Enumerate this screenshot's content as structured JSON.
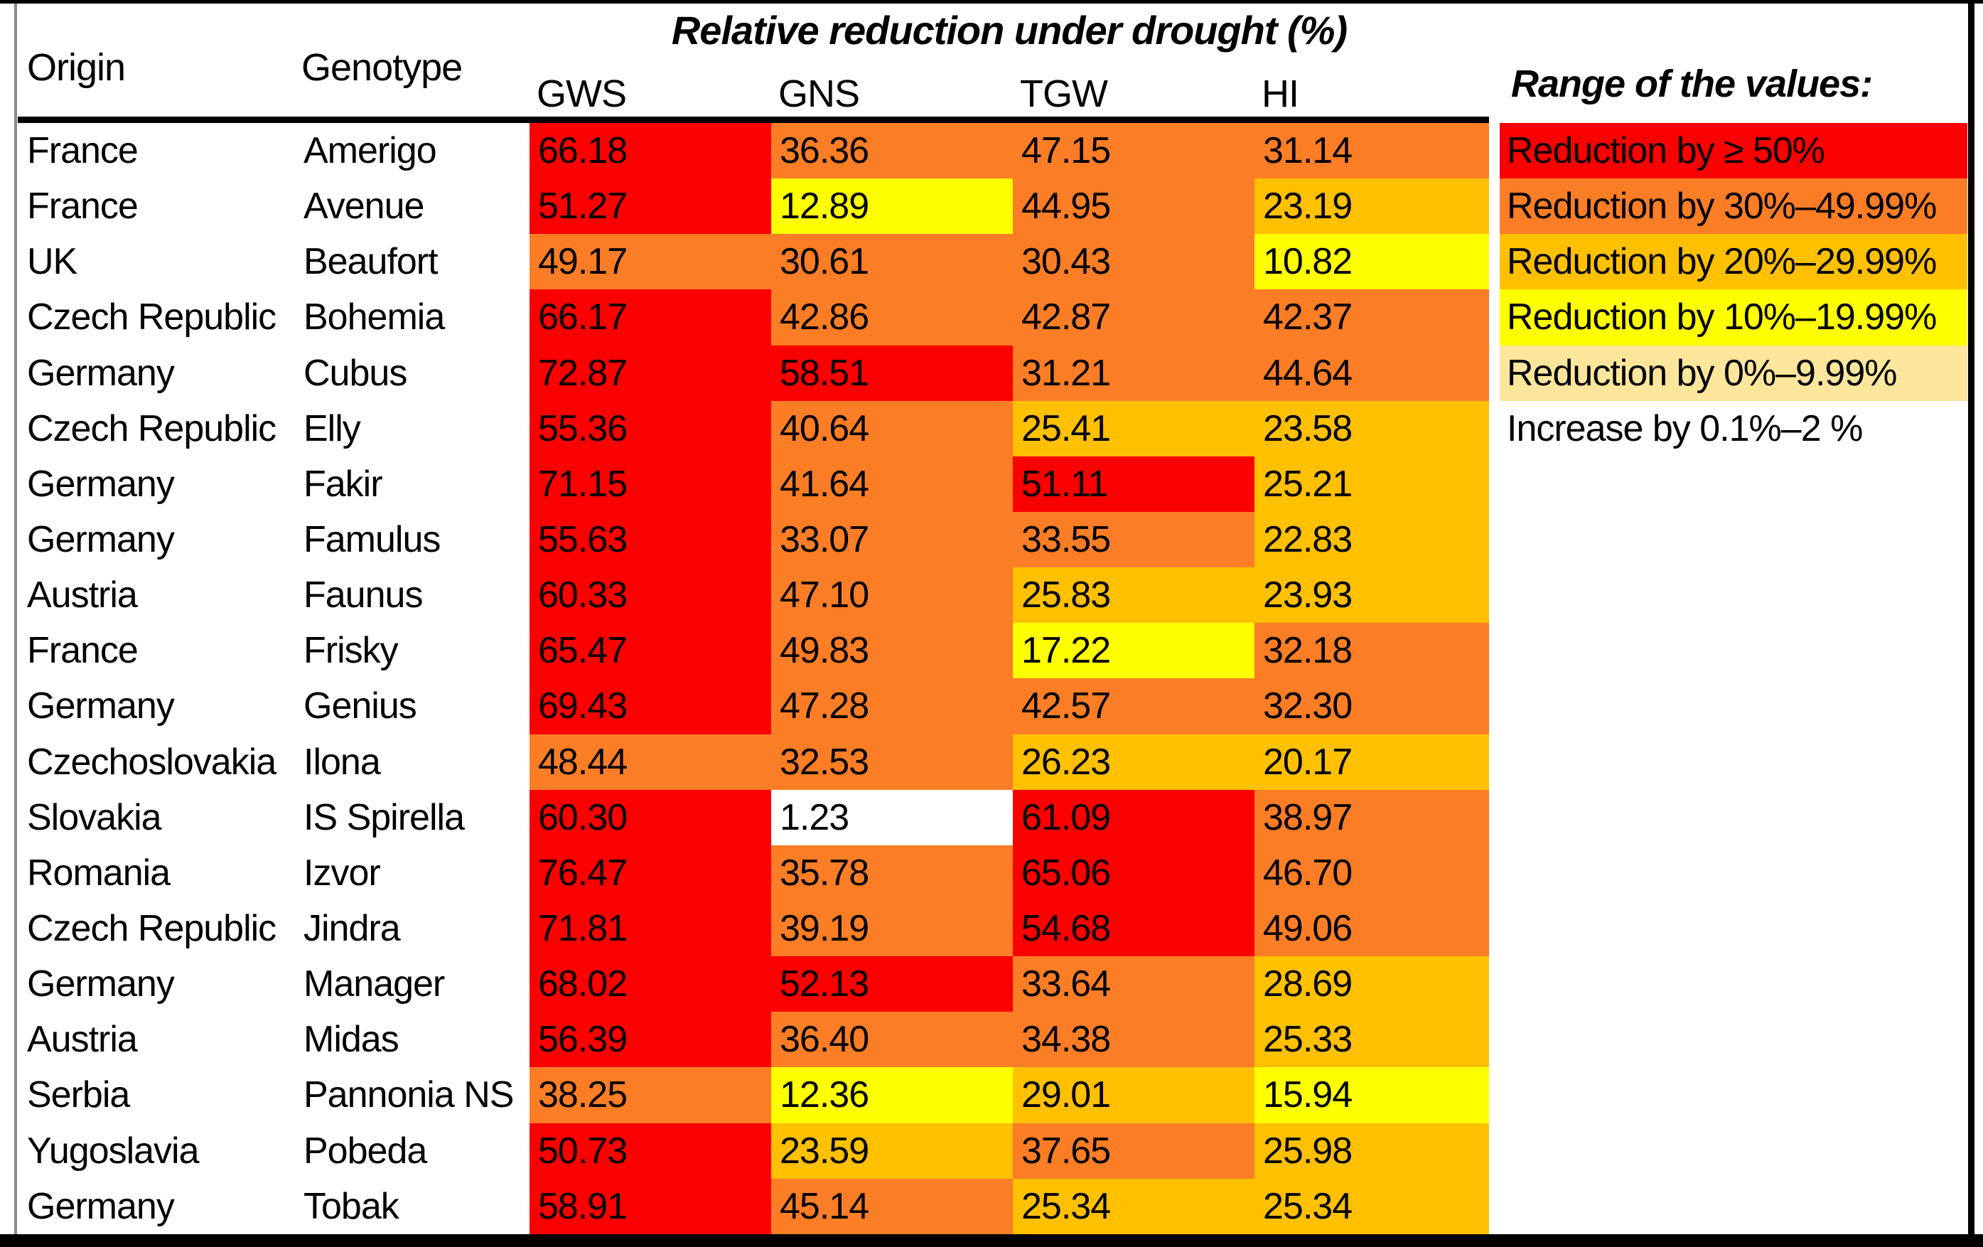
{
  "title": "Relative reduction under drought (%)",
  "headers": {
    "origin": "Origin",
    "genotype": "Genotype"
  },
  "metrics": [
    "GWS",
    "GNS",
    "TGW",
    "HI"
  ],
  "palette": {
    "ge50": "#FB0000",
    "r30": "#FB7D25",
    "r20": "#FFC000",
    "r10": "#FFFF00",
    "r0": "#FCE69C",
    "inc": "#FFFFFF"
  },
  "legend": {
    "title": "Range of the values:",
    "items": [
      {
        "level": "ge50",
        "label": "Reduction by ≥ 50%"
      },
      {
        "level": "r30",
        "label": "Reduction by 30%–49.99%"
      },
      {
        "level": "r20",
        "label": "Reduction by 20%–29.99%"
      },
      {
        "level": "r10",
        "label": "Reduction by 10%–19.99%"
      },
      {
        "level": "r0",
        "label": "Reduction by 0%–9.99%"
      },
      {
        "level": "inc",
        "label": "Increase by 0.1%–2 %"
      }
    ]
  },
  "chart_data": {
    "type": "heatmap",
    "title": "Relative reduction under drought (%)",
    "row_header_columns": [
      "Origin",
      "Genotype"
    ],
    "columns": [
      "GWS",
      "GNS",
      "TGW",
      "HI"
    ],
    "rows": [
      {
        "origin": "France",
        "genotype": "Amerigo",
        "values": [
          "66.18",
          "36.36",
          "47.15",
          "31.14"
        ],
        "levels": [
          "ge50",
          "r30",
          "r30",
          "r30"
        ]
      },
      {
        "origin": "France",
        "genotype": "Avenue",
        "values": [
          "51.27",
          "12.89",
          "44.95",
          "23.19"
        ],
        "levels": [
          "ge50",
          "r10",
          "r30",
          "r20"
        ]
      },
      {
        "origin": "UK",
        "genotype": "Beaufort",
        "values": [
          "49.17",
          "30.61",
          "30.43",
          "10.82"
        ],
        "levels": [
          "r30",
          "r30",
          "r30",
          "r10"
        ]
      },
      {
        "origin": "Czech Republic",
        "genotype": "Bohemia",
        "values": [
          "66.17",
          "42.86",
          "42.87",
          "42.37"
        ],
        "levels": [
          "ge50",
          "r30",
          "r30",
          "r30"
        ]
      },
      {
        "origin": "Germany",
        "genotype": "Cubus",
        "values": [
          "72.87",
          "58.51",
          "31.21",
          "44.64"
        ],
        "levels": [
          "ge50",
          "ge50",
          "r30",
          "r30"
        ]
      },
      {
        "origin": "Czech Republic",
        "genotype": "Elly",
        "values": [
          "55.36",
          "40.64",
          "25.41",
          "23.58"
        ],
        "levels": [
          "ge50",
          "r30",
          "r20",
          "r20"
        ]
      },
      {
        "origin": "Germany",
        "genotype": "Fakir",
        "values": [
          "71.15",
          "41.64",
          "51.11",
          "25.21"
        ],
        "levels": [
          "ge50",
          "r30",
          "ge50",
          "r20"
        ]
      },
      {
        "origin": "Germany",
        "genotype": "Famulus",
        "values": [
          "55.63",
          "33.07",
          "33.55",
          "22.83"
        ],
        "levels": [
          "ge50",
          "r30",
          "r30",
          "r20"
        ]
      },
      {
        "origin": "Austria",
        "genotype": "Faunus",
        "values": [
          "60.33",
          "47.10",
          "25.83",
          "23.93"
        ],
        "levels": [
          "ge50",
          "r30",
          "r20",
          "r20"
        ]
      },
      {
        "origin": "France",
        "genotype": "Frisky",
        "values": [
          "65.47",
          "49.83",
          "17.22",
          "32.18"
        ],
        "levels": [
          "ge50",
          "r30",
          "r10",
          "r30"
        ]
      },
      {
        "origin": "Germany",
        "genotype": "Genius",
        "values": [
          "69.43",
          "47.28",
          "42.57",
          "32.30"
        ],
        "levels": [
          "ge50",
          "r30",
          "r30",
          "r30"
        ]
      },
      {
        "origin": "Czechoslovakia",
        "genotype": "Ilona",
        "values": [
          "48.44",
          "32.53",
          "26.23",
          "20.17"
        ],
        "levels": [
          "r30",
          "r30",
          "r20",
          "r20"
        ]
      },
      {
        "origin": "Slovakia",
        "genotype": "IS Spirella",
        "values": [
          "60.30",
          "1.23",
          "61.09",
          "38.97"
        ],
        "levels": [
          "ge50",
          "inc",
          "ge50",
          "r30"
        ]
      },
      {
        "origin": "Romania",
        "genotype": "Izvor",
        "values": [
          "76.47",
          "35.78",
          "65.06",
          "46.70"
        ],
        "levels": [
          "ge50",
          "r30",
          "ge50",
          "r30"
        ]
      },
      {
        "origin": "Czech Republic",
        "genotype": "Jindra",
        "values": [
          "71.81",
          "39.19",
          "54.68",
          "49.06"
        ],
        "levels": [
          "ge50",
          "r30",
          "ge50",
          "r30"
        ]
      },
      {
        "origin": "Germany",
        "genotype": "Manager",
        "values": [
          "68.02",
          "52.13",
          "33.64",
          "28.69"
        ],
        "levels": [
          "ge50",
          "ge50",
          "r30",
          "r20"
        ]
      },
      {
        "origin": "Austria",
        "genotype": "Midas",
        "values": [
          "56.39",
          "36.40",
          "34.38",
          "25.33"
        ],
        "levels": [
          "ge50",
          "r30",
          "r30",
          "r20"
        ]
      },
      {
        "origin": "Serbia",
        "genotype": "Pannonia NS",
        "values": [
          "38.25",
          "12.36",
          "29.01",
          "15.94"
        ],
        "levels": [
          "r30",
          "r10",
          "r20",
          "r10"
        ]
      },
      {
        "origin": "Yugoslavia",
        "genotype": "Pobeda",
        "values": [
          "50.73",
          "23.59",
          "37.65",
          "25.98"
        ],
        "levels": [
          "ge50",
          "r20",
          "r30",
          "r20"
        ]
      },
      {
        "origin": "Germany",
        "genotype": "Tobak",
        "values": [
          "58.91",
          "45.14",
          "25.34",
          "25.34"
        ],
        "levels": [
          "ge50",
          "r30",
          "r20",
          "r20"
        ]
      }
    ]
  }
}
